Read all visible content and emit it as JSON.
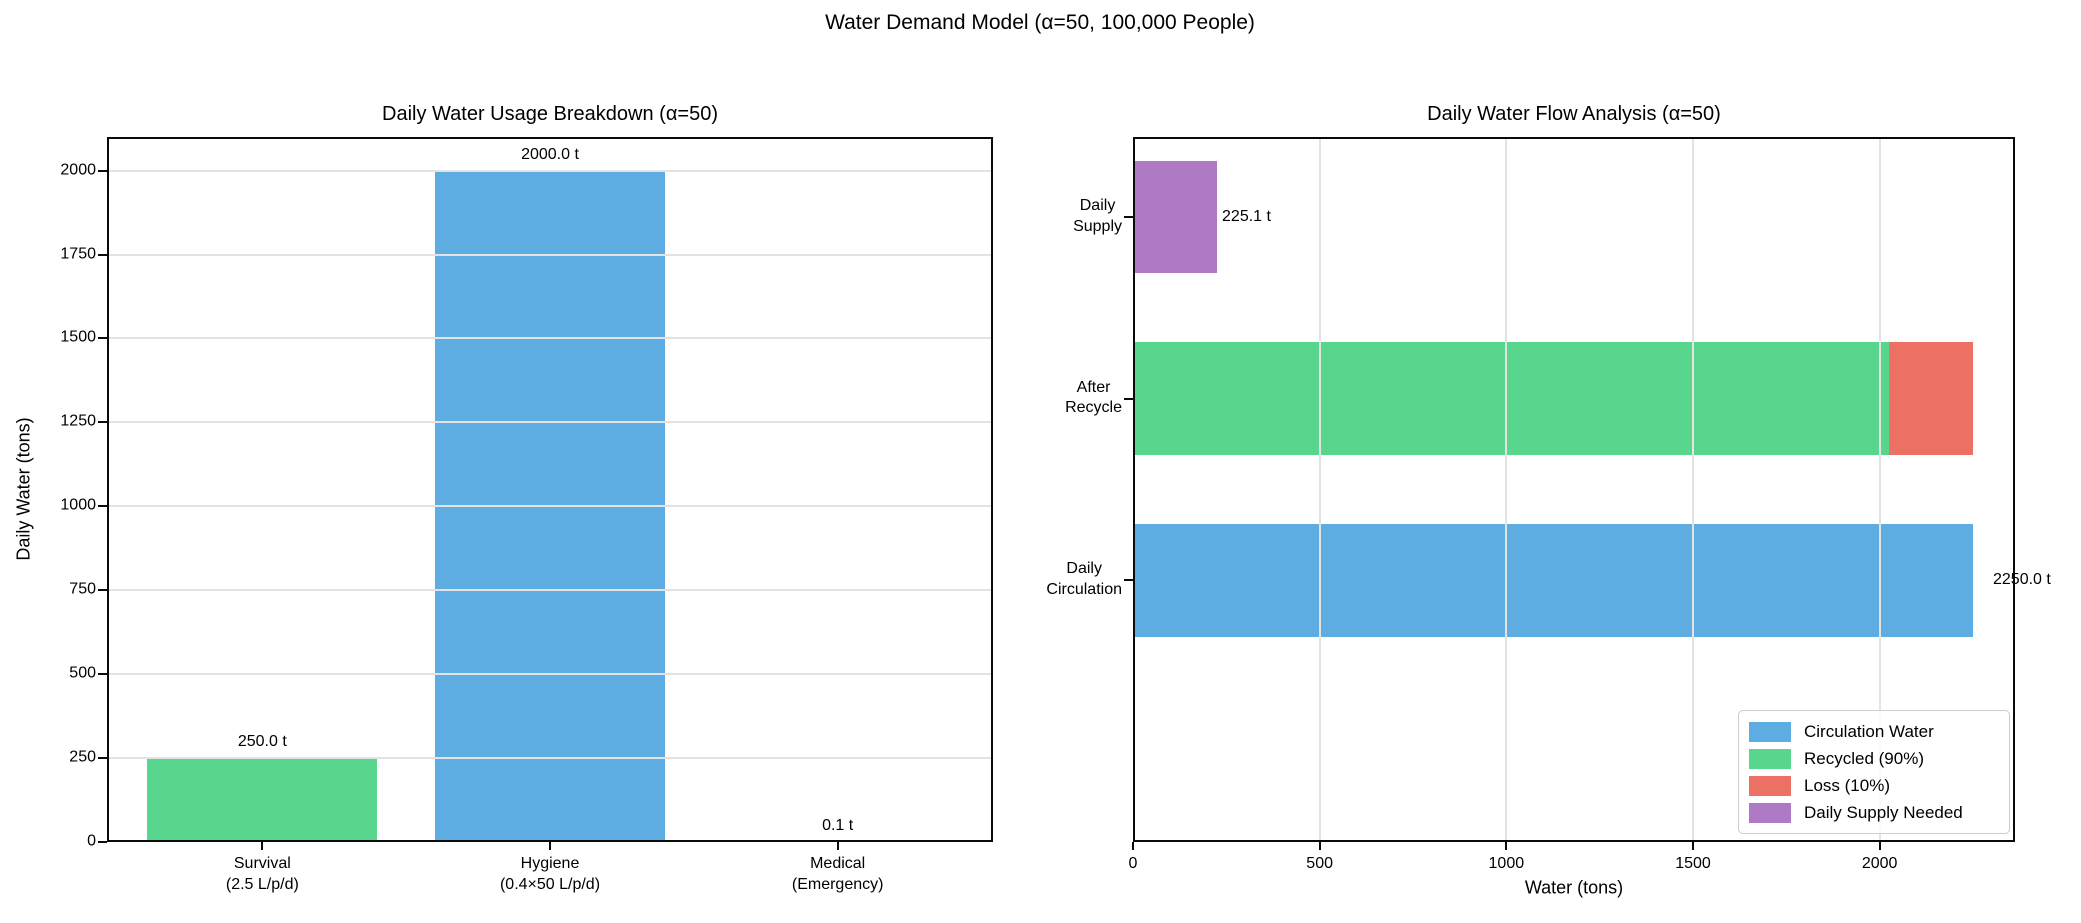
{
  "figure": {
    "suptitle": "Water Demand Model (α=50, 100,000 People)"
  },
  "chart_data": [
    {
      "type": "bar",
      "title": "Daily Water Usage Breakdown (α=50)",
      "xlabel": "",
      "ylabel": "Daily Water (tons)",
      "categories": [
        "Survival\n(2.5 L/p/d)",
        "Hygiene\n(0.4×50 L/p/d)",
        "Medical\n(Emergency)"
      ],
      "values": [
        250.0,
        2000.0,
        0.1
      ],
      "bar_colors": [
        "#58D68D",
        "#5DADE2",
        "#EC7063"
      ],
      "annotations": [
        "250.0 t",
        "2000.0 t",
        "0.1 t"
      ],
      "ylim": [
        0,
        2100
      ],
      "yticks": [
        0,
        250,
        500,
        750,
        1000,
        1250,
        1500,
        1750,
        2000
      ],
      "grid": "horizontal gridlines on"
    },
    {
      "type": "bar",
      "orientation": "horizontal-stacked",
      "title": "Daily Water Flow Analysis (α=50)",
      "xlabel": "Water (tons)",
      "ylabel": "",
      "rows": [
        {
          "label": "Daily\nSupply",
          "segments": [
            {
              "name": "Daily Supply Needed",
              "value": 225.1,
              "color": "#AF7AC5"
            }
          ],
          "annotation": "225.1 t"
        },
        {
          "label": "After\nRecycle",
          "segments": [
            {
              "name": "Recycled (90%)",
              "value": 2025.0,
              "color": "#58D68D"
            },
            {
              "name": "Loss (10%)",
              "value": 225.0,
              "color": "#EC7063"
            }
          ],
          "annotation": ""
        },
        {
          "label": "Daily\nCirculation",
          "segments": [
            {
              "name": "Circulation Water",
              "value": 2250.0,
              "color": "#5DADE2"
            }
          ],
          "annotation": "2250.0 t"
        }
      ],
      "xlim": [
        0,
        2362.5
      ],
      "xticks": [
        0,
        500,
        1000,
        1500,
        2000
      ],
      "grid": "vertical gridlines on",
      "legend": {
        "position": "lower right",
        "entries": [
          {
            "label": "Circulation Water",
            "color": "#5DADE2"
          },
          {
            "label": "Recycled (90%)",
            "color": "#58D68D"
          },
          {
            "label": "Loss (10%)",
            "color": "#EC7063"
          },
          {
            "label": "Daily Supply Needed",
            "color": "#AF7AC5"
          }
        ]
      }
    }
  ],
  "colors": {
    "blue": "#5DADE2",
    "green": "#58D68D",
    "red": "#EC7063",
    "purple": "#AF7AC5",
    "gridline": "#e3e3e3"
  }
}
